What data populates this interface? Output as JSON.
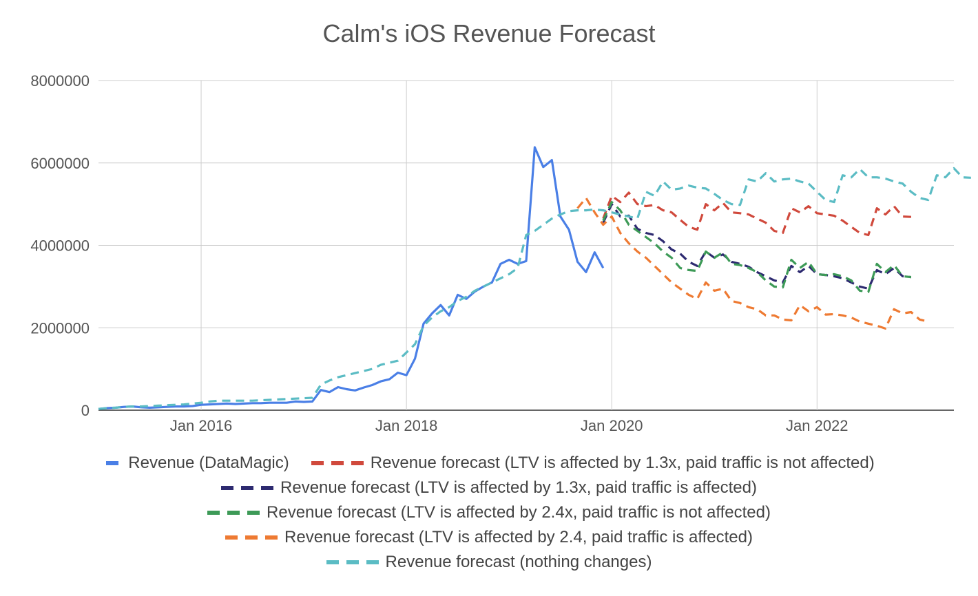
{
  "chart_data": {
    "type": "line",
    "title": "Calm's iOS Revenue Forecast",
    "xlabel": "",
    "ylabel": "",
    "x_tick_labels": [
      "Jan 2016",
      "Jan 2018",
      "Jan 2020",
      "Jan 2022"
    ],
    "x_tick_dates": [
      "2016-01",
      "2018-01",
      "2020-01",
      "2022-01"
    ],
    "xlim": [
      "2015-01",
      "2023-05"
    ],
    "y_ticks": [
      0,
      2000000,
      4000000,
      6000000,
      8000000
    ],
    "y_tick_labels": [
      "0",
      "2000000",
      "4000000",
      "6000000",
      "8000000"
    ],
    "ylim": [
      0,
      8000000
    ],
    "grid": true,
    "legend_position": "bottom",
    "series": [
      {
        "name": "Revenue (DataMagic)",
        "color": "#4a7fe6",
        "dash": "solid",
        "start": "2015-01",
        "values": [
          30000,
          50000,
          60000,
          80000,
          90000,
          70000,
          60000,
          70000,
          80000,
          90000,
          90000,
          100000,
          130000,
          140000,
          150000,
          160000,
          150000,
          160000,
          170000,
          170000,
          180000,
          180000,
          180000,
          210000,
          200000,
          210000,
          490000,
          440000,
          560000,
          510000,
          480000,
          550000,
          610000,
          700000,
          750000,
          910000,
          850000,
          1250000,
          2100000,
          2350000,
          2550000,
          2300000,
          2800000,
          2700000,
          2880000,
          3000000,
          3100000,
          3550000,
          3650000,
          3550000,
          3620000,
          6380000,
          5900000,
          6070000,
          4700000,
          4380000,
          3600000,
          3350000,
          3830000,
          3450000
        ]
      },
      {
        "name": "Revenue forecast (LTV is affected by 1.3x, paid traffic is not affected)",
        "color": "#d0493c",
        "dash": "dashed",
        "start": "2019-12",
        "values": [
          4650000,
          5200000,
          5050000,
          5280000,
          5000000,
          4950000,
          4980000,
          4850000,
          4800000,
          4620000,
          4450000,
          4380000,
          5000000,
          4850000,
          5030000,
          4800000,
          4780000,
          4750000,
          4650000,
          4550000,
          4350000,
          4300000,
          4900000,
          4800000,
          4950000,
          4780000,
          4750000,
          4720000,
          4600000,
          4450000,
          4300000,
          4250000,
          4900000,
          4750000,
          4950000,
          4700000,
          4690000
        ]
      },
      {
        "name": "Revenue forecast (LTV is affected by 1.3x, paid traffic is affected)",
        "color": "#2d2a70",
        "dash": "dashed",
        "start": "2019-12",
        "values": [
          4550000,
          5000000,
          4700000,
          4720000,
          4400000,
          4300000,
          4250000,
          4100000,
          3900000,
          3800000,
          3600000,
          3500000,
          3850000,
          3700000,
          3780000,
          3600000,
          3550000,
          3480000,
          3350000,
          3250000,
          3150000,
          3100000,
          3500000,
          3350000,
          3500000,
          3300000,
          3280000,
          3250000,
          3200000,
          3100000,
          3000000,
          2950000,
          3400000,
          3300000,
          3450000,
          3250000,
          3230000
        ]
      },
      {
        "name": "Revenue forecast (LTV is affected by 2.4x, paid traffic is not affected)",
        "color": "#3d9a57",
        "dash": "dashed",
        "start": "2019-12",
        "values": [
          4600000,
          5050000,
          4850000,
          4500000,
          4350000,
          4200000,
          4050000,
          3850000,
          3700000,
          3450000,
          3400000,
          3380000,
          3850000,
          3700000,
          3830000,
          3550000,
          3520000,
          3450000,
          3350000,
          3150000,
          3000000,
          2980000,
          3650000,
          3450000,
          3600000,
          3300000,
          3280000,
          3300000,
          3250000,
          3150000,
          2900000,
          2870000,
          3550000,
          3350000,
          3520000,
          3250000,
          3230000
        ]
      },
      {
        "name": "Revenue forecast (LTV is affected by 2.4, paid traffic is affected)",
        "color": "#ee7a32",
        "dash": "dashed",
        "start": "2019-09",
        "values": [
          4900000,
          5150000,
          4800000,
          4500000,
          4700000,
          4300000,
          4050000,
          3850000,
          3700000,
          3500000,
          3300000,
          3100000,
          2950000,
          2800000,
          2700000,
          3100000,
          2900000,
          2950000,
          2650000,
          2600000,
          2500000,
          2450000,
          2300000,
          2300000,
          2200000,
          2180000,
          2550000,
          2400000,
          2500000,
          2320000,
          2330000,
          2300000,
          2250000,
          2150000,
          2100000,
          2050000,
          1980000,
          2450000,
          2350000,
          2380000,
          2200000,
          2150000
        ]
      },
      {
        "name": "Revenue forecast (nothing changes)",
        "color": "#5bbcc4",
        "dash": "dashed",
        "start": "2015-01",
        "values": [
          30000,
          50000,
          60000,
          80000,
          90000,
          90000,
          100000,
          110000,
          120000,
          130000,
          140000,
          160000,
          180000,
          210000,
          230000,
          230000,
          230000,
          230000,
          230000,
          240000,
          250000,
          260000,
          270000,
          280000,
          290000,
          300000,
          620000,
          720000,
          800000,
          850000,
          900000,
          950000,
          1000000,
          1100000,
          1150000,
          1200000,
          1400000,
          1600000,
          2050000,
          2250000,
          2400000,
          2500000,
          2650000,
          2750000,
          2900000,
          3000000,
          3100000,
          3200000,
          3300000,
          3450000,
          4250000,
          4350000,
          4500000,
          4650000,
          4750000,
          4830000,
          4850000,
          4850000,
          4870000,
          4850000,
          4800000,
          4750000,
          4700000,
          4650000,
          5300000,
          5200000,
          5550000,
          5350000,
          5380000,
          5450000,
          5400000,
          5380000,
          5250000,
          5100000,
          5000000,
          4980000,
          5600000,
          5550000,
          5750000,
          5550000,
          5600000,
          5620000,
          5550000,
          5500000,
          5300000,
          5100000,
          5050000,
          5700000,
          5650000,
          5850000,
          5650000,
          5650000,
          5620000,
          5550000,
          5500000,
          5300000,
          5150000,
          5100000,
          5700000,
          5650000,
          5870000,
          5650000,
          5640000
        ]
      }
    ],
    "legend_rows": [
      [
        0,
        1
      ],
      [
        2
      ],
      [
        3
      ],
      [
        4
      ],
      [
        5
      ]
    ]
  }
}
